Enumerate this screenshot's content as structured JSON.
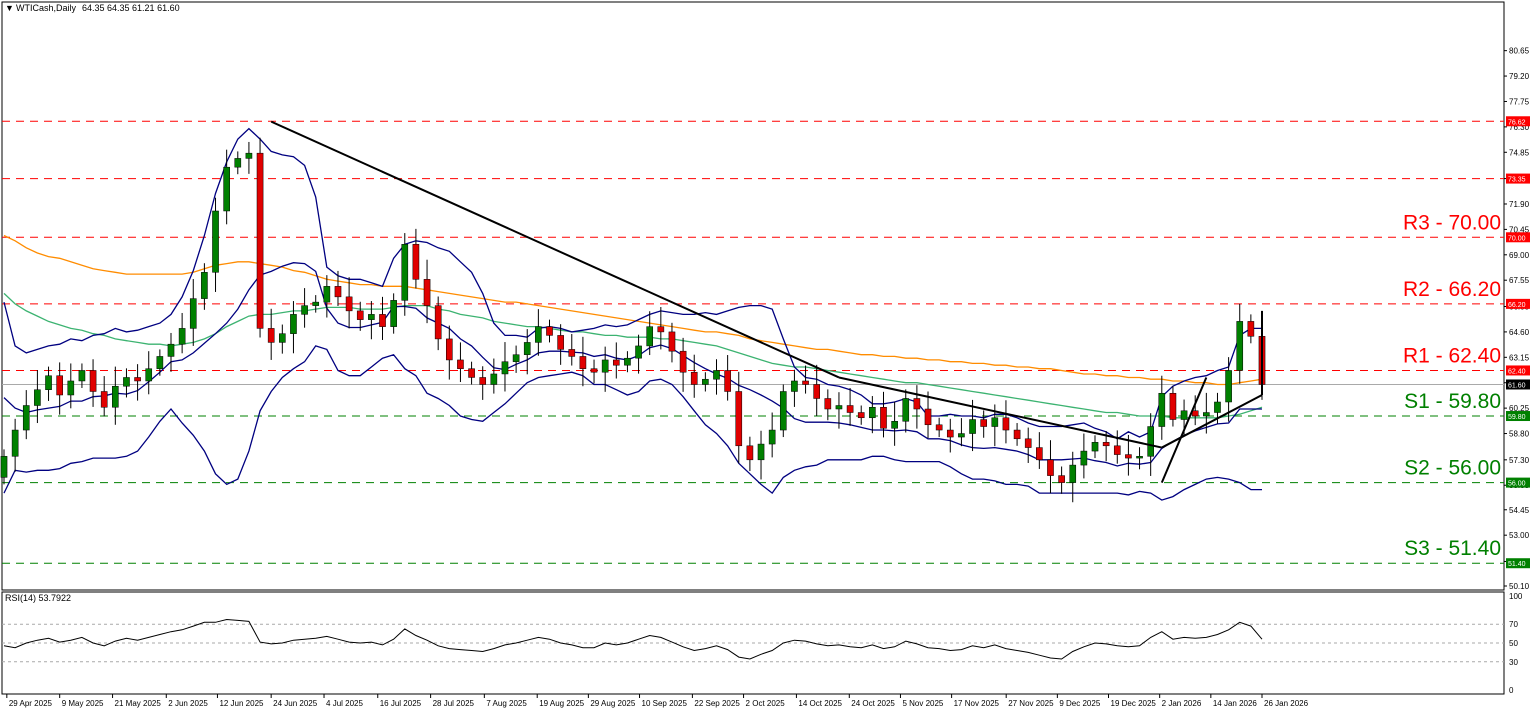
{
  "chart_data": {
    "type": "candlestick",
    "symbol_header": "WTICash,Daily",
    "ohlc_header": "64.35 64.35 61.21 61.60",
    "last_price": 61.6,
    "ylim": [
      50.1,
      81.6
    ],
    "yticks": [
      "80.65",
      "79.20",
      "77.75",
      "76.30",
      "74.85",
      "73.35",
      "71.90",
      "70.45",
      "69.00",
      "67.55",
      "66.05",
      "64.60",
      "63.15",
      "61.70",
      "60.25",
      "58.80",
      "57.30",
      "55.85",
      "54.45",
      "53.00",
      "51.50",
      "50.10"
    ],
    "xticks": [
      "29 Apr 2025",
      "9 May 2025",
      "21 May 2025",
      "2 Jun 2025",
      "12 Jun 2025",
      "24 Jun 2025",
      "4 Jul 2025",
      "16 Jul 2025",
      "28 Jul 2025",
      "7 Aug 2025",
      "19 Aug 2025",
      "29 Aug 2025",
      "10 Sep 2025",
      "22 Sep 2025",
      "2 Oct 2025",
      "14 Oct 2025",
      "24 Oct 2025",
      "5 Nov 2025",
      "17 Nov 2025",
      "27 Nov 2025",
      "9 Dec 2025",
      "19 Dec 2025",
      "2 Jan 2026",
      "14 Jan 2026",
      "26 Jan 2026"
    ],
    "levels": [
      {
        "value": 76.62,
        "tag": "76.62",
        "label": "",
        "color": "#ff0000"
      },
      {
        "value": 73.35,
        "tag": "73.35",
        "label": "",
        "color": "#ff0000"
      },
      {
        "value": 70.0,
        "tag": "70.00",
        "label": "R3 - 70.00",
        "color": "#ff0000"
      },
      {
        "value": 66.2,
        "tag": "66.20",
        "label": "R2 - 66.20",
        "color": "#ff0000"
      },
      {
        "value": 62.4,
        "tag": "62.40",
        "label": "R1 - 62.40",
        "color": "#ff0000"
      },
      {
        "value": 59.8,
        "tag": "59.80",
        "label": "S1 - 59.80",
        "color": "#008000"
      },
      {
        "value": 56.0,
        "tag": "56.00",
        "label": "S2 - 56.00",
        "color": "#008000"
      },
      {
        "value": 51.4,
        "tag": "51.40",
        "label": "S3 - 51.40",
        "color": "#008000"
      }
    ],
    "closes": [
      57.5,
      59.0,
      60.4,
      61.3,
      62.1,
      61.0,
      61.8,
      62.4,
      61.2,
      60.3,
      61.5,
      62.0,
      61.8,
      62.5,
      63.2,
      63.9,
      64.8,
      66.5,
      68.0,
      71.5,
      74.0,
      74.5,
      74.8,
      64.8,
      64.0,
      64.5,
      65.6,
      66.1,
      66.3,
      67.2,
      66.6,
      65.8,
      65.3,
      65.6,
      64.9,
      66.4,
      69.6,
      67.6,
      66.1,
      64.2,
      63.0,
      62.5,
      62.0,
      61.6,
      62.2,
      62.9,
      63.3,
      64.0,
      64.9,
      64.4,
      63.6,
      63.2,
      62.5,
      62.3,
      63.0,
      62.7,
      63.1,
      63.8,
      64.9,
      64.6,
      63.5,
      62.3,
      61.6,
      61.9,
      62.4,
      61.2,
      58.1,
      57.3,
      58.2,
      59.0,
      61.2,
      61.8,
      61.6,
      60.8,
      60.2,
      60.4,
      60.0,
      59.7,
      60.3,
      59.1,
      59.5,
      60.8,
      60.2,
      59.3,
      59.0,
      58.6,
      58.8,
      59.6,
      59.2,
      59.7,
      59.0,
      58.5,
      58.0,
      57.3,
      56.4,
      56.0,
      57.0,
      57.8,
      58.3,
      58.1,
      57.6,
      57.4,
      57.5,
      59.2,
      61.1,
      59.6,
      60.1,
      59.8,
      60.0,
      60.6,
      62.4,
      65.2,
      64.35,
      61.6
    ],
    "bb_upper": [
      66.3,
      63.8,
      63.4,
      63.6,
      63.8,
      63.9,
      64.2,
      64.1,
      64.4,
      64.5,
      64.8,
      64.6,
      64.7,
      64.9,
      65.1,
      65.6,
      66.6,
      68.1,
      70.1,
      72.5,
      74.3,
      75.6,
      76.2,
      75.6,
      74.9,
      74.7,
      74.6,
      74.1,
      72.3,
      68.3,
      67.8,
      67.6,
      67.6,
      67.4,
      67.2,
      68.8,
      69.6,
      69.8,
      69.7,
      69.4,
      69.2,
      68.6,
      68.0,
      66.8,
      65.1,
      64.4,
      64.4,
      64.3,
      64.8,
      64.9,
      64.8,
      64.6,
      64.7,
      64.8,
      65.0,
      64.9,
      65.0,
      65.3,
      65.6,
      65.8,
      65.7,
      65.6,
      65.6,
      65.7,
      65.6,
      65.8,
      66.0,
      66.1,
      66.1,
      65.9,
      64.2,
      62.6,
      62.0,
      61.9,
      61.6,
      61.5,
      61.3,
      61.0,
      60.5,
      60.5,
      60.6,
      60.8,
      60.6,
      59.8,
      59.8,
      59.9,
      59.8,
      59.8,
      59.7,
      59.9,
      59.9,
      59.7,
      59.4,
      59.2,
      59.2,
      59.2,
      59.3,
      59.4,
      59.1,
      58.9,
      58.5,
      58.9,
      58.6,
      58.9,
      60.9,
      61.5,
      61.8,
      62.0,
      62.1,
      62.4,
      62.6,
      64.4,
      64.8,
      64.8
    ],
    "bb_lower": [
      55.4,
      56.7,
      56.6,
      56.7,
      56.7,
      56.8,
      57.1,
      57.2,
      57.4,
      57.4,
      57.4,
      57.5,
      57.8,
      58.6,
      59.5,
      60.2,
      59.4,
      58.7,
      57.8,
      56.5,
      55.9,
      56.2,
      57.8,
      60.1,
      61.2,
      62.0,
      62.5,
      62.9,
      63.8,
      63.6,
      62.4,
      62.1,
      62.1,
      62.6,
      63.1,
      63.3,
      62.5,
      62.1,
      61.1,
      60.8,
      60.4,
      59.8,
      59.6,
      59.5,
      60.0,
      60.5,
      61.1,
      61.7,
      62.0,
      62.1,
      62.2,
      62.3,
      62.1,
      61.6,
      61.6,
      61.3,
      61.0,
      61.2,
      61.8,
      61.9,
      61.6,
      60.9,
      60.1,
      59.3,
      58.8,
      58.1,
      57.1,
      56.5,
      55.9,
      55.4,
      56.3,
      56.7,
      56.9,
      57.0,
      57.3,
      57.3,
      57.3,
      57.3,
      57.5,
      57.5,
      57.3,
      57.2,
      57.2,
      57.2,
      57.2,
      56.9,
      56.5,
      56.2,
      56.2,
      56.1,
      55.9,
      55.9,
      55.8,
      55.4,
      55.4,
      55.4,
      55.4,
      55.4,
      55.4,
      55.4,
      55.4,
      55.3,
      55.5,
      55.4,
      55.0,
      55.2,
      55.6,
      55.9,
      56.2,
      56.3,
      56.2,
      56.0,
      55.6,
      55.6
    ],
    "sma200": [
      70.1,
      69.8,
      69.4,
      69.1,
      68.9,
      68.8,
      68.6,
      68.4,
      68.2,
      68.1,
      68.0,
      67.9,
      67.9,
      67.9,
      67.9,
      67.9,
      67.9,
      68.0,
      68.2,
      68.4,
      68.5,
      68.6,
      68.6,
      68.5,
      68.4,
      68.3,
      68.1,
      68.0,
      67.8,
      67.6,
      67.5,
      67.4,
      67.3,
      67.3,
      67.2,
      67.2,
      67.2,
      67.1,
      67.0,
      66.9,
      66.8,
      66.7,
      66.6,
      66.5,
      66.4,
      66.3,
      66.3,
      66.2,
      66.1,
      66.0,
      65.9,
      65.8,
      65.7,
      65.6,
      65.5,
      65.4,
      65.3,
      65.2,
      65.1,
      65.0,
      64.9,
      64.8,
      64.7,
      64.6,
      64.6,
      64.5,
      64.4,
      64.2,
      64.1,
      64.0,
      63.9,
      63.8,
      63.7,
      63.6,
      63.6,
      63.5,
      63.4,
      63.3,
      63.3,
      63.2,
      63.2,
      63.1,
      63.1,
      63.0,
      63.0,
      62.9,
      62.9,
      62.8,
      62.8,
      62.7,
      62.7,
      62.6,
      62.6,
      62.5,
      62.5,
      62.4,
      62.3,
      62.2,
      62.2,
      62.1,
      62.1,
      62.0,
      62.0,
      61.9,
      61.9,
      61.8,
      61.8,
      61.7,
      61.7,
      61.6,
      61.6,
      61.7,
      61.8,
      61.9
    ],
    "ema100": [
      66.8,
      66.2,
      65.8,
      65.5,
      65.2,
      65.0,
      64.8,
      64.7,
      64.5,
      64.4,
      64.2,
      64.1,
      64.0,
      63.9,
      63.9,
      63.8,
      63.9,
      64.0,
      64.2,
      64.5,
      64.9,
      65.2,
      65.5,
      65.6,
      65.6,
      65.7,
      65.8,
      65.8,
      65.9,
      66.0,
      66.0,
      66.0,
      65.9,
      65.9,
      65.9,
      66.0,
      66.1,
      66.1,
      66.1,
      65.9,
      65.8,
      65.6,
      65.5,
      65.4,
      65.2,
      65.1,
      65.0,
      64.9,
      64.9,
      64.8,
      64.7,
      64.6,
      64.6,
      64.5,
      64.4,
      64.4,
      64.3,
      64.3,
      64.3,
      64.2,
      64.2,
      64.1,
      64.0,
      63.9,
      63.8,
      63.6,
      63.4,
      63.2,
      63.0,
      62.8,
      62.7,
      62.6,
      62.6,
      62.5,
      62.4,
      62.3,
      62.2,
      62.1,
      62.0,
      61.9,
      61.8,
      61.7,
      61.7,
      61.6,
      61.5,
      61.4,
      61.3,
      61.2,
      61.1,
      61.0,
      60.9,
      60.8,
      60.7,
      60.6,
      60.5,
      60.4,
      60.3,
      60.2,
      60.1,
      60.0,
      60.0,
      59.9,
      59.8,
      59.8,
      59.8,
      59.7,
      59.7,
      59.7,
      59.7,
      59.7,
      59.8,
      59.9,
      60.1,
      60.3
    ],
    "trendlines": [
      {
        "from": [
          "24 Jun 2025",
          76.6
        ],
        "to": [
          "24 Oct 2025",
          62.0
        ]
      },
      {
        "from": [
          "24 Oct 2025",
          62.0
        ],
        "to": [
          "2 Jan 2026",
          58.0
        ]
      },
      {
        "from": [
          "2 Jan 2026",
          56.0
        ],
        "to": [
          "14 Jan 2026",
          62.0
        ]
      },
      {
        "from": [
          "2 Jan 2026",
          58.0
        ],
        "to": [
          "26 Jan 2026",
          61.0
        ]
      },
      {
        "from": [
          "26 Jan 2026",
          61.0
        ],
        "to": [
          "26 Jan 2026",
          65.8
        ]
      }
    ],
    "rsi": {
      "header": "RSI(14) 53.7922",
      "ticks": [
        "100",
        "70",
        "50",
        "30",
        "0"
      ],
      "levels": [
        70,
        50,
        30
      ],
      "values": [
        47,
        45,
        50,
        53,
        55,
        51,
        53,
        56,
        50,
        47,
        52,
        55,
        53,
        56,
        59,
        62,
        64,
        68,
        72,
        72,
        75,
        74,
        73,
        51,
        49,
        50,
        53,
        54,
        55,
        57,
        54,
        51,
        50,
        51,
        48,
        54,
        65,
        58,
        53,
        47,
        44,
        43,
        42,
        41,
        44,
        48,
        50,
        53,
        56,
        54,
        50,
        48,
        45,
        45,
        50,
        48,
        50,
        54,
        58,
        56,
        51,
        46,
        42,
        44,
        47,
        43,
        35,
        33,
        38,
        42,
        50,
        53,
        52,
        49,
        47,
        48,
        46,
        45,
        48,
        44,
        46,
        52,
        49,
        45,
        44,
        42,
        43,
        47,
        45,
        48,
        44,
        42,
        40,
        37,
        34,
        33,
        41,
        46,
        50,
        49,
        47,
        46,
        47,
        56,
        62,
        54,
        56,
        55,
        56,
        59,
        64,
        72,
        68,
        54
      ]
    },
    "colors": {
      "up_candle": "#008000",
      "down_candle": "#e00000",
      "bollinger": "#000080",
      "sma200": "#ff8c00",
      "ema100": "#3cb371",
      "trendline": "#000000",
      "price_line": "#a9a9a9"
    }
  }
}
